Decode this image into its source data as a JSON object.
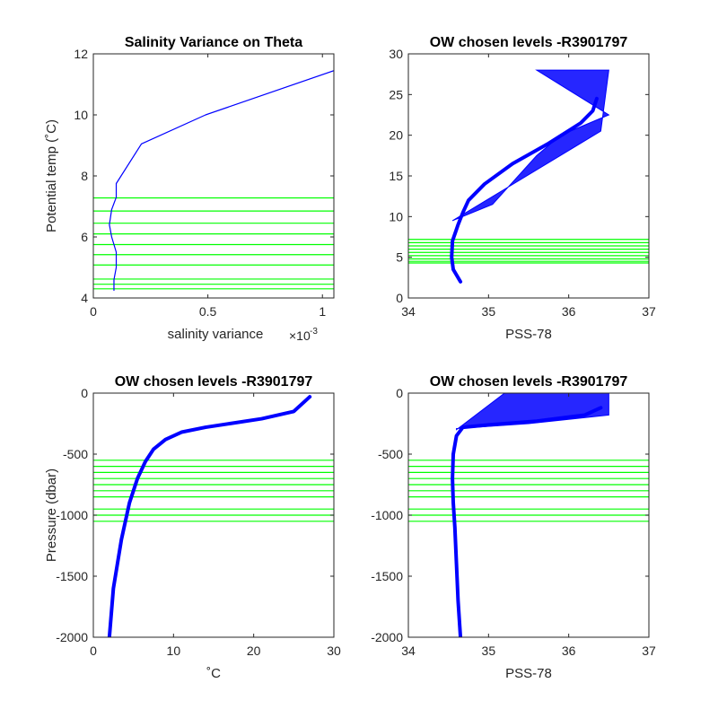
{
  "colors": {
    "profile": "#0000ff",
    "levels": "#00ff00",
    "axis": "#262626"
  },
  "panels": [
    {
      "title": "Salinity Variance on Theta",
      "xlabel": "salinity variance",
      "xexp_base": "×10",
      "xexp_power": "-3",
      "ylabel": "Potential temp (˚C)",
      "xlim": [
        0,
        1.05
      ],
      "ylim": [
        4,
        12
      ],
      "xticks": [
        0,
        0.5,
        1
      ],
      "xtick_labels": [
        "0",
        "0.5",
        "1"
      ],
      "yticks": [
        4,
        6,
        8,
        10,
        12
      ],
      "ytick_labels": [
        "4",
        "6",
        "8",
        "10",
        "12"
      ],
      "level_lines": [
        4.3,
        4.45,
        4.62,
        5.08,
        5.42,
        5.75,
        6.1,
        6.45,
        6.85,
        7.28
      ],
      "line": {
        "x": [
          0.09,
          0.09,
          0.1,
          0.1,
          0.08,
          0.07,
          0.08,
          0.1,
          0.1,
          0.21,
          0.49,
          1.05
        ],
        "y": [
          4.25,
          4.6,
          5.0,
          5.5,
          6.0,
          6.4,
          6.9,
          7.3,
          7.75,
          9.05,
          10.0,
          11.45
        ]
      },
      "band": null
    },
    {
      "title": "OW chosen levels -R3901797",
      "xlabel": "PSS-78",
      "ylabel": "",
      "xlim": [
        34,
        37
      ],
      "ylim": [
        0,
        30
      ],
      "xticks": [
        34,
        35,
        36,
        37
      ],
      "xtick_labels": [
        "34",
        "35",
        "36",
        "37"
      ],
      "yticks": [
        0,
        5,
        10,
        15,
        20,
        25,
        30
      ],
      "ytick_labels": [
        "0",
        "5",
        "10",
        "15",
        "20",
        "25",
        "30"
      ],
      "level_lines": [
        4.3,
        4.5,
        4.8,
        5.2,
        5.6,
        6.0,
        6.4,
        6.8,
        7.2
      ],
      "line": {
        "x": [
          34.65,
          34.56,
          34.54,
          34.55,
          34.62,
          34.68,
          34.75,
          34.95,
          35.3,
          35.75,
          36.15,
          36.3,
          36.35
        ],
        "y": [
          2.0,
          3.5,
          5.0,
          7.0,
          9.0,
          10.5,
          12.0,
          14.0,
          16.5,
          19.0,
          21.5,
          23.0,
          24.5
        ]
      },
      "band": {
        "x": [
          34.55,
          35.05,
          35.6,
          35.9,
          36.5,
          35.6,
          36.5,
          36.4
        ],
        "y": [
          9.5,
          11.5,
          17.5,
          20.0,
          22.5,
          28.0,
          28.0,
          20.5
        ]
      }
    },
    {
      "title": "OW chosen levels -R3901797",
      "xlabel": "˚C",
      "ylabel": "Pressure (dbar)",
      "xlim": [
        0,
        30
      ],
      "ylim": [
        -2000,
        0
      ],
      "xticks": [
        0,
        10,
        20,
        30
      ],
      "xtick_labels": [
        "0",
        "10",
        "20",
        "30"
      ],
      "yticks": [
        -2000,
        -1500,
        -1000,
        -500,
        0
      ],
      "ytick_labels": [
        "-2000",
        "-1500",
        "-1000",
        "-500",
        "0"
      ],
      "level_lines": [
        -550,
        -600,
        -650,
        -700,
        -750,
        -800,
        -850,
        -950,
        -1000,
        -1050
      ],
      "line": {
        "x": [
          2.0,
          2.5,
          3.5,
          4.5,
          5.5,
          6.5,
          7.5,
          9.0,
          11.0,
          14.0,
          17.0,
          21.0,
          25.0,
          27.0
        ],
        "y": [
          -2000,
          -1600,
          -1200,
          -900,
          -700,
          -560,
          -460,
          -380,
          -320,
          -280,
          -250,
          -210,
          -150,
          -30
        ]
      },
      "band": null
    },
    {
      "title": "OW chosen levels -R3901797",
      "xlabel": "PSS-78",
      "ylabel": "",
      "xlim": [
        34,
        37
      ],
      "ylim": [
        -2000,
        0
      ],
      "xticks": [
        34,
        35,
        36,
        37
      ],
      "xtick_labels": [
        "34",
        "35",
        "36",
        "37"
      ],
      "yticks": [
        -2000,
        -1500,
        -1000,
        -500,
        0
      ],
      "ytick_labels": [
        "-2000",
        "-1500",
        "-1000",
        "-500",
        "0"
      ],
      "level_lines": [
        -550,
        -600,
        -650,
        -700,
        -750,
        -800,
        -850,
        -950,
        -1000,
        -1050
      ],
      "line": {
        "x": [
          34.65,
          34.62,
          34.6,
          34.58,
          34.56,
          34.55,
          34.56,
          34.6,
          34.68,
          35.0,
          35.6,
          36.2,
          36.4
        ],
        "y": [
          -2000,
          -1700,
          -1400,
          -1100,
          -900,
          -700,
          -500,
          -350,
          -280,
          -260,
          -230,
          -180,
          -120
        ]
      },
      "band": {
        "x": [
          34.6,
          35.5,
          36.5,
          36.5,
          35.2,
          34.6
        ],
        "y": [
          -290,
          -250,
          -180,
          0,
          0,
          -300
        ]
      }
    }
  ]
}
